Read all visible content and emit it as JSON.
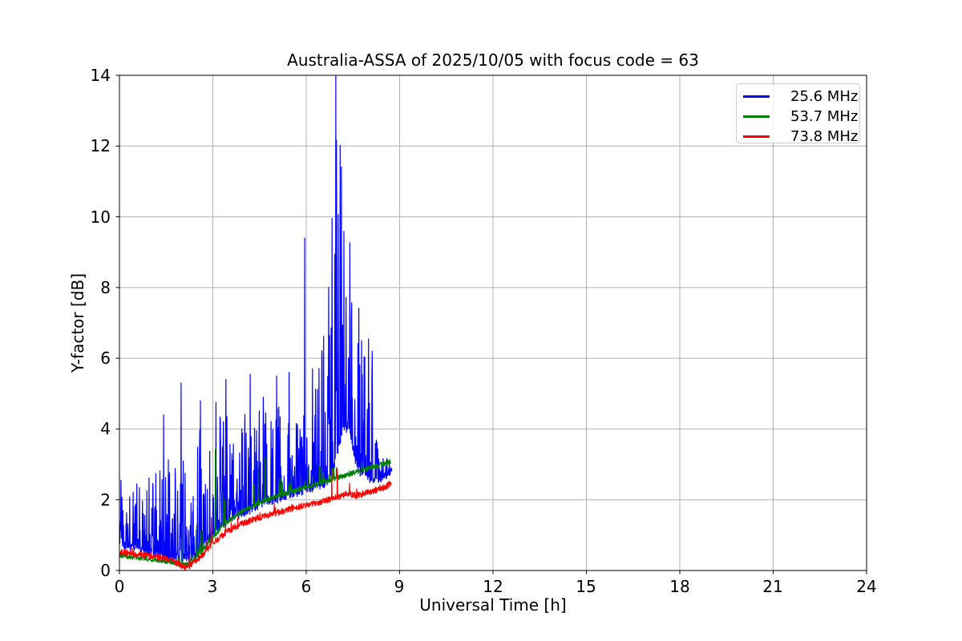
{
  "figure": {
    "background": "#ffffff",
    "frame_color": "#000000",
    "tick_color": "#000000"
  },
  "chart_data": {
    "type": "line",
    "title": "Australia-ASSA of 2025/10/05 with focus code = 63",
    "xlabel": "Universal Time [h]",
    "ylabel": "Y-factor [dB]",
    "xlim": [
      0,
      24
    ],
    "ylim": [
      0,
      14
    ],
    "xticks": [
      0,
      3,
      6,
      9,
      12,
      15,
      18,
      21,
      24
    ],
    "yticks": [
      0,
      2,
      4,
      6,
      8,
      10,
      12,
      14
    ],
    "grid": true,
    "grid_color": "#b0b0b0",
    "legend_position": "upper right",
    "sample_step_h": 0.01,
    "series": [
      {
        "name": "25.6 MHz",
        "color": "#0000ff",
        "seed": 11,
        "x_end": 8.75,
        "band": 0.12,
        "spike_probability": 0.55,
        "spike_power": 2.2,
        "baseline": [
          [
            0,
            0.75
          ],
          [
            0.3,
            0.68
          ],
          [
            0.6,
            0.6
          ],
          [
            1.0,
            0.5
          ],
          [
            1.5,
            0.4
          ],
          [
            2.0,
            0.32
          ],
          [
            2.3,
            0.3
          ],
          [
            2.6,
            0.6
          ],
          [
            3.0,
            1.05
          ],
          [
            3.5,
            1.45
          ],
          [
            4.0,
            1.63
          ],
          [
            4.5,
            1.85
          ],
          [
            5.0,
            2.0
          ],
          [
            5.5,
            2.15
          ],
          [
            6.0,
            2.28
          ],
          [
            6.5,
            2.42
          ],
          [
            6.8,
            2.6
          ],
          [
            7.0,
            3.3
          ],
          [
            7.2,
            4.1
          ],
          [
            7.4,
            3.9
          ],
          [
            7.55,
            3.2
          ],
          [
            7.7,
            2.8
          ],
          [
            8.0,
            2.6
          ],
          [
            8.3,
            2.55
          ],
          [
            8.55,
            2.65
          ],
          [
            8.75,
            2.85
          ]
        ],
        "spike_envelope": [
          [
            0,
            2.7
          ],
          [
            0.4,
            2.5
          ],
          [
            0.8,
            2.4
          ],
          [
            1.1,
            2.9
          ],
          [
            1.4,
            3.6
          ],
          [
            1.7,
            3.2
          ],
          [
            2.0,
            3.6
          ],
          [
            2.3,
            3.4
          ],
          [
            2.6,
            4.3
          ],
          [
            3.0,
            4.1
          ],
          [
            3.3,
            4.6
          ],
          [
            3.7,
            4.2
          ],
          [
            4.0,
            4.7
          ],
          [
            4.4,
            4.5
          ],
          [
            4.8,
            4.8
          ],
          [
            5.2,
            4.6
          ],
          [
            5.6,
            4.7
          ],
          [
            6.0,
            5.2
          ],
          [
            6.3,
            5.6
          ],
          [
            6.6,
            7.0
          ],
          [
            6.8,
            10.0
          ],
          [
            6.9,
            14.5
          ],
          [
            7.1,
            14.5
          ],
          [
            7.25,
            12.0
          ],
          [
            7.35,
            13.5
          ],
          [
            7.5,
            14.5
          ],
          [
            7.6,
            11.5
          ],
          [
            7.7,
            7.0
          ],
          [
            7.9,
            6.6
          ],
          [
            8.05,
            6.4
          ],
          [
            8.2,
            4.2
          ],
          [
            8.4,
            3.4
          ],
          [
            8.6,
            3.2
          ],
          [
            8.75,
            3.1
          ]
        ],
        "spikes": [
          [
            0.05,
            2.55
          ],
          [
            1.42,
            4.4
          ],
          [
            1.98,
            5.3
          ],
          [
            2.6,
            4.8
          ],
          [
            3.1,
            4.75
          ],
          [
            3.42,
            5.4
          ],
          [
            4.2,
            5.55
          ],
          [
            4.62,
            4.9
          ],
          [
            5.05,
            5.5
          ],
          [
            5.45,
            5.6
          ],
          [
            5.95,
            9.4
          ],
          [
            6.2,
            5.7
          ],
          [
            7.78,
            6.5
          ],
          [
            8.0,
            6.55
          ],
          [
            8.12,
            6.2
          ]
        ]
      },
      {
        "name": "53.7 MHz",
        "color": "#008000",
        "seed": 23,
        "x_end": 8.72,
        "band": 0.07,
        "spike_probability": 0.05,
        "spike_power": 1.8,
        "baseline": [
          [
            0,
            0.42
          ],
          [
            0.5,
            0.37
          ],
          [
            1.0,
            0.32
          ],
          [
            1.5,
            0.26
          ],
          [
            1.9,
            0.18
          ],
          [
            2.1,
            0.15
          ],
          [
            2.4,
            0.3
          ],
          [
            2.7,
            0.6
          ],
          [
            3.0,
            0.95
          ],
          [
            3.5,
            1.4
          ],
          [
            4.0,
            1.7
          ],
          [
            4.5,
            1.92
          ],
          [
            5.0,
            2.08
          ],
          [
            5.5,
            2.22
          ],
          [
            6.0,
            2.36
          ],
          [
            6.5,
            2.5
          ],
          [
            7.0,
            2.62
          ],
          [
            7.5,
            2.76
          ],
          [
            8.0,
            2.9
          ],
          [
            8.4,
            3.0
          ],
          [
            8.72,
            3.08
          ]
        ],
        "spike_envelope": [
          [
            0,
            0.55
          ],
          [
            1.5,
            0.4
          ],
          [
            2.0,
            0.45
          ],
          [
            2.3,
            0.9
          ],
          [
            2.6,
            1.3
          ],
          [
            3.0,
            1.7
          ],
          [
            3.5,
            2.1
          ],
          [
            4.0,
            2.4
          ],
          [
            4.5,
            2.7
          ],
          [
            5.0,
            2.85
          ],
          [
            5.5,
            2.95
          ],
          [
            6.0,
            3.0
          ],
          [
            6.5,
            3.05
          ],
          [
            7.0,
            2.95
          ],
          [
            8.0,
            3.15
          ],
          [
            8.72,
            3.25
          ]
        ],
        "spikes": [
          [
            2.02,
            1.35
          ],
          [
            2.48,
            1.28
          ],
          [
            3.08,
            3.42
          ],
          [
            3.32,
            2.2
          ],
          [
            4.45,
            2.9
          ],
          [
            4.68,
            3.2
          ],
          [
            5.12,
            2.6
          ],
          [
            5.52,
            2.85
          ],
          [
            6.05,
            2.9
          ],
          [
            6.55,
            2.78
          ]
        ]
      },
      {
        "name": "73.8 MHz",
        "color": "#ff0000",
        "seed": 37,
        "x_end": 8.73,
        "band": 0.09,
        "spike_probability": 0.04,
        "spike_power": 1.5,
        "baseline": [
          [
            0,
            0.52
          ],
          [
            0.5,
            0.47
          ],
          [
            1.0,
            0.42
          ],
          [
            1.5,
            0.34
          ],
          [
            1.9,
            0.18
          ],
          [
            2.15,
            0.07
          ],
          [
            2.45,
            0.25
          ],
          [
            2.7,
            0.48
          ],
          [
            3.0,
            0.78
          ],
          [
            3.5,
            1.12
          ],
          [
            4.0,
            1.35
          ],
          [
            4.5,
            1.5
          ],
          [
            5.0,
            1.62
          ],
          [
            5.5,
            1.74
          ],
          [
            6.0,
            1.85
          ],
          [
            6.5,
            1.95
          ],
          [
            7.0,
            2.08
          ],
          [
            7.3,
            2.15
          ],
          [
            7.6,
            2.12
          ],
          [
            8.0,
            2.2
          ],
          [
            8.4,
            2.32
          ],
          [
            8.6,
            2.38
          ],
          [
            8.73,
            2.5
          ]
        ],
        "spike_envelope": [
          [
            0,
            0.75
          ],
          [
            2.0,
            0.3
          ],
          [
            3.0,
            1.05
          ],
          [
            4.0,
            1.6
          ],
          [
            5.0,
            1.9
          ],
          [
            6.0,
            2.15
          ],
          [
            6.6,
            2.5
          ],
          [
            7.0,
            2.5
          ],
          [
            8.0,
            2.45
          ],
          [
            8.73,
            2.65
          ]
        ],
        "spikes": [
          [
            2.95,
            1.5
          ],
          [
            6.82,
            2.85
          ],
          [
            7.0,
            2.87
          ]
        ]
      }
    ]
  }
}
